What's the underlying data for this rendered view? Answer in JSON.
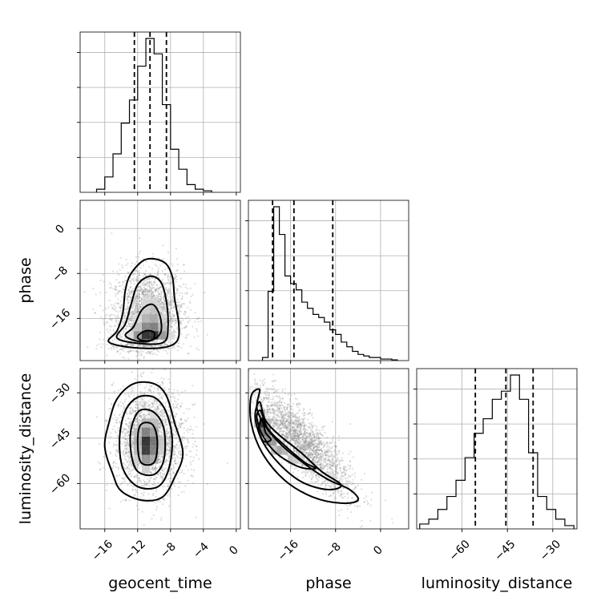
{
  "chart_data": {
    "type": "corner",
    "parameters": [
      "geocent_time",
      "phase",
      "luminosity_distance"
    ],
    "axis_labels": {
      "geocent_time": "geocent_time",
      "phase": "phase",
      "luminosity_distance": "luminosity_distance"
    },
    "ranges": {
      "geocent_time": [
        -19,
        0.5
      ],
      "phase": [
        -23.5,
        5
      ],
      "luminosity_distance": [
        -75,
        -22
      ]
    },
    "ticks": {
      "geocent_time": [
        -16,
        -12,
        -8,
        -4,
        0
      ],
      "phase": [
        -16,
        -8,
        0
      ],
      "luminosity_distance": [
        -60,
        -45,
        -30
      ]
    },
    "tick_labels": {
      "geocent_time": [
        "−16",
        "−12",
        "−8",
        "−4",
        "0"
      ],
      "phase": [
        "−16",
        "−8",
        "0"
      ],
      "luminosity_distance": [
        "−60",
        "−45",
        "−30"
      ]
    },
    "quantiles": {
      "geocent_time": [
        -12.4,
        -10.5,
        -8.5
      ],
      "phase": [
        -19.2,
        -15.4,
        -8.5
      ],
      "luminosity_distance": [
        -55.6,
        -45.5,
        -36.5
      ]
    },
    "histograms": {
      "geocent_time": {
        "edges": [
          -17,
          -16,
          -15,
          -14,
          -13,
          -12,
          -11,
          -10,
          -9,
          -8,
          -7,
          -6,
          -5,
          -4,
          -3
        ],
        "counts": [
          0.02,
          0.1,
          0.25,
          0.45,
          0.6,
          0.82,
          1.0,
          0.9,
          0.57,
          0.28,
          0.15,
          0.05,
          0.02,
          0.01
        ]
      },
      "phase": {
        "edges": [
          -21,
          -20,
          -19,
          -18,
          -17,
          -16,
          -15,
          -14,
          -13,
          -12,
          -11,
          -10,
          -9,
          -8,
          -7,
          -6,
          -5,
          -4,
          -3,
          -2,
          -1,
          0,
          1,
          2,
          3
        ],
        "counts": [
          0.02,
          0.45,
          1.0,
          0.82,
          0.55,
          0.5,
          0.46,
          0.38,
          0.34,
          0.3,
          0.28,
          0.25,
          0.2,
          0.17,
          0.12,
          0.09,
          0.06,
          0.04,
          0.03,
          0.02,
          0.02,
          0.01,
          0.01,
          0.005
        ]
      },
      "luminosity_distance": {
        "edges": [
          -74,
          -71,
          -68,
          -65,
          -62,
          -59,
          -56,
          -53,
          -50,
          -47,
          -44,
          -41,
          -38,
          -35,
          -32,
          -29,
          -26,
          -23
        ],
        "counts": [
          0.03,
          0.06,
          0.12,
          0.2,
          0.3,
          0.44,
          0.59,
          0.68,
          0.8,
          0.85,
          0.95,
          0.8,
          0.47,
          0.2,
          0.12,
          0.06,
          0.02
        ]
      }
    },
    "joint": [
      {
        "x": "geocent_time",
        "y": "phase",
        "mean": [
          -10.8,
          -15.4
        ],
        "sd": [
          2.2,
          4.2
        ],
        "rho": 0.05,
        "skew_y": true,
        "contours": [
          [
            [
              -15.5,
              -20.2
            ],
            [
              -14.5,
              -18.2
            ],
            [
              -13.8,
              -15.0
            ],
            [
              -13.5,
              -11.0
            ],
            [
              -12.8,
              -8.0
            ],
            [
              -11.0,
              -5.5
            ],
            [
              -8.8,
              -6.0
            ],
            [
              -7.8,
              -8.5
            ],
            [
              -7.5,
              -12.5
            ],
            [
              -7.0,
              -17.0
            ],
            [
              -7.2,
              -20.0
            ],
            [
              -9.0,
              -21.2
            ],
            [
              -12.5,
              -21.2
            ]
          ],
          [
            [
              -14.5,
              -19.5
            ],
            [
              -13.5,
              -17.0
            ],
            [
              -12.8,
              -13.5
            ],
            [
              -12.0,
              -10.0
            ],
            [
              -10.5,
              -8.5
            ],
            [
              -9.2,
              -9.5
            ],
            [
              -8.5,
              -13.0
            ],
            [
              -8.3,
              -17.5
            ],
            [
              -8.8,
              -20.2
            ],
            [
              -11.5,
              -20.5
            ]
          ],
          [
            [
              -13.5,
              -19.0
            ],
            [
              -12.5,
              -17.5
            ],
            [
              -11.5,
              -14.5
            ],
            [
              -10.2,
              -13.5
            ],
            [
              -9.3,
              -15.5
            ],
            [
              -9.2,
              -18.5
            ],
            [
              -10.5,
              -20.0
            ],
            [
              -12.2,
              -20.0
            ]
          ],
          [
            [
              -12.0,
              -19.2
            ],
            [
              -11.0,
              -18.2
            ],
            [
              -10.0,
              -18.5
            ],
            [
              -10.2,
              -19.8
            ],
            [
              -11.5,
              -19.9
            ]
          ]
        ],
        "density": [
          {
            "x": -11.0,
            "y": -19.0,
            "w": 0.9
          },
          {
            "x": -10.0,
            "y": -19.0,
            "w": 0.9
          },
          {
            "x": -11.0,
            "y": -17.5,
            "w": 0.5
          },
          {
            "x": -10.0,
            "y": -17.5,
            "w": 0.55
          },
          {
            "x": -12.0,
            "y": -19.0,
            "w": 0.45
          },
          {
            "x": -9.0,
            "y": -19.0,
            "w": 0.45
          },
          {
            "x": -11.0,
            "y": -16.0,
            "w": 0.3
          },
          {
            "x": -10.0,
            "y": -16.0,
            "w": 0.35
          },
          {
            "x": -10.0,
            "y": -14.5,
            "w": 0.25
          },
          {
            "x": -11.0,
            "y": -14.5,
            "w": 0.2
          },
          {
            "x": -12.0,
            "y": -17.5,
            "w": 0.25
          },
          {
            "x": -9.0,
            "y": -17.5,
            "w": 0.28
          },
          {
            "x": -10.0,
            "y": -13.0,
            "w": 0.18
          },
          {
            "x": -11.0,
            "y": -13.0,
            "w": 0.15
          },
          {
            "x": -9.0,
            "y": -16.0,
            "w": 0.18
          },
          {
            "x": -12.0,
            "y": -16.0,
            "w": 0.15
          },
          {
            "x": -13.0,
            "y": -19.0,
            "w": 0.15
          },
          {
            "x": -8.0,
            "y": -19.0,
            "w": 0.15
          }
        ]
      },
      {
        "x": "geocent_time",
        "y": "luminosity_distance",
        "mean": [
          -10.5,
          -45.5
        ],
        "sd": [
          2.2,
          8.5
        ],
        "rho": 0.0,
        "skew_y": false,
        "contours": [
          [
            [
              -12.5,
              -27.0
            ],
            [
              -14.5,
              -32.0
            ],
            [
              -15.5,
              -40.0
            ],
            [
              -16.0,
              -48.0
            ],
            [
              -15.0,
              -57.0
            ],
            [
              -14.0,
              -62.5
            ],
            [
              -11.5,
              -65.5
            ],
            [
              -9.0,
              -64.5
            ],
            [
              -7.5,
              -58.0
            ],
            [
              -6.5,
              -50.0
            ],
            [
              -7.5,
              -40.0
            ],
            [
              -8.5,
              -31.0
            ],
            [
              -10.0,
              -27.0
            ]
          ],
          [
            [
              -12.0,
              -31.5
            ],
            [
              -13.5,
              -36.0
            ],
            [
              -14.2,
              -45.0
            ],
            [
              -13.8,
              -55.0
            ],
            [
              -12.0,
              -61.0
            ],
            [
              -9.5,
              -61.0
            ],
            [
              -8.2,
              -55.0
            ],
            [
              -7.8,
              -45.0
            ],
            [
              -8.6,
              -36.0
            ],
            [
              -10.0,
              -31.5
            ]
          ],
          [
            [
              -11.8,
              -36.0
            ],
            [
              -12.8,
              -42.0
            ],
            [
              -12.8,
              -50.0
            ],
            [
              -12.0,
              -56.0
            ],
            [
              -10.0,
              -57.0
            ],
            [
              -8.8,
              -52.0
            ],
            [
              -8.8,
              -42.0
            ],
            [
              -10.0,
              -36.5
            ]
          ],
          [
            [
              -11.6,
              -40.5
            ],
            [
              -12.0,
              -46.0
            ],
            [
              -11.6,
              -53.0
            ],
            [
              -10.0,
              -53.0
            ],
            [
              -9.6,
              -46.0
            ],
            [
              -10.2,
              -40.5
            ]
          ]
        ],
        "density": [
          {
            "x": -11.0,
            "y": -46.0,
            "w": 0.9
          },
          {
            "x": -11.0,
            "y": -49.0,
            "w": 0.85
          },
          {
            "x": -10.0,
            "y": -46.0,
            "w": 0.6
          },
          {
            "x": -11.0,
            "y": -43.0,
            "w": 0.55
          },
          {
            "x": -10.0,
            "y": -49.0,
            "w": 0.55
          },
          {
            "x": -11.0,
            "y": -52.0,
            "w": 0.45
          },
          {
            "x": -12.0,
            "y": -46.0,
            "w": 0.35
          },
          {
            "x": -10.0,
            "y": -43.0,
            "w": 0.4
          },
          {
            "x": -10.0,
            "y": -52.0,
            "w": 0.35
          },
          {
            "x": -12.0,
            "y": -49.0,
            "w": 0.3
          },
          {
            "x": -11.0,
            "y": -40.0,
            "w": 0.3
          },
          {
            "x": -10.0,
            "y": -40.0,
            "w": 0.28
          },
          {
            "x": -12.0,
            "y": -43.0,
            "w": 0.28
          },
          {
            "x": -9.0,
            "y": -46.0,
            "w": 0.25
          },
          {
            "x": -9.0,
            "y": -49.0,
            "w": 0.22
          },
          {
            "x": -11.0,
            "y": -55.0,
            "w": 0.2
          },
          {
            "x": -12.0,
            "y": -52.0,
            "w": 0.2
          },
          {
            "x": -10.0,
            "y": -37.0,
            "w": 0.15
          }
        ]
      },
      {
        "x": "phase",
        "y": "luminosity_distance",
        "mean": [
          -14.0,
          -46.0
        ],
        "sd": [
          4.5,
          9.0
        ],
        "rho": -0.85,
        "skew_y": false,
        "contours": [
          [
            [
              -21.5,
              -29.0
            ],
            [
              -22.0,
              -35.0
            ],
            [
              -20.5,
              -41.0
            ],
            [
              -17.5,
              -47.5
            ],
            [
              -13.5,
              -53.5
            ],
            [
              -9.5,
              -58.5
            ],
            [
              -5.5,
              -62.0
            ],
            [
              -4.0,
              -65.5
            ],
            [
              -7.0,
              -66.5
            ],
            [
              -12.0,
              -64.5
            ],
            [
              -17.0,
              -59.0
            ],
            [
              -21.0,
              -50.0
            ],
            [
              -23.0,
              -40.0
            ],
            [
              -23.0,
              -31.0
            ]
          ],
          [
            [
              -21.5,
              -33.0
            ],
            [
              -20.5,
              -39.0
            ],
            [
              -18.0,
              -44.0
            ],
            [
              -14.0,
              -50.0
            ],
            [
              -10.5,
              -56.0
            ],
            [
              -7.0,
              -60.5
            ],
            [
              -9.5,
              -62.0
            ],
            [
              -14.0,
              -59.5
            ],
            [
              -18.0,
              -53.5
            ],
            [
              -21.0,
              -46.0
            ],
            [
              -22.3,
              -38.0
            ]
          ],
          [
            [
              -21.3,
              -36.0
            ],
            [
              -20.0,
              -42.0
            ],
            [
              -17.0,
              -47.5
            ],
            [
              -13.5,
              -53.0
            ],
            [
              -11.5,
              -55.0
            ],
            [
              -14.5,
              -54.5
            ],
            [
              -18.5,
              -50.0
            ],
            [
              -21.0,
              -44.0
            ],
            [
              -22.0,
              -38.0
            ]
          ],
          [
            [
              -21.0,
              -38.5
            ],
            [
              -20.5,
              -43.0
            ],
            [
              -19.5,
              -45.5
            ],
            [
              -20.8,
              -46.0
            ],
            [
              -21.7,
              -42.0
            ]
          ]
        ],
        "density": [
          {
            "x": -21.0,
            "y": -40.0,
            "w": 0.95
          },
          {
            "x": -21.0,
            "y": -43.0,
            "w": 0.6
          },
          {
            "x": -20.0,
            "y": -43.0,
            "w": 0.55
          },
          {
            "x": -20.0,
            "y": -46.0,
            "w": 0.5
          },
          {
            "x": -21.0,
            "y": -37.0,
            "w": 0.35
          },
          {
            "x": -19.0,
            "y": -46.0,
            "w": 0.45
          },
          {
            "x": -18.0,
            "y": -49.0,
            "w": 0.38
          },
          {
            "x": -17.0,
            "y": -49.0,
            "w": 0.32
          },
          {
            "x": -16.0,
            "y": -52.0,
            "w": 0.25
          },
          {
            "x": -15.0,
            "y": -52.0,
            "w": 0.22
          },
          {
            "x": -19.0,
            "y": -49.0,
            "w": 0.28
          },
          {
            "x": -22.0,
            "y": -40.0,
            "w": 0.3
          },
          {
            "x": -20.0,
            "y": -40.0,
            "w": 0.3
          },
          {
            "x": -12.0,
            "y": -55.0,
            "w": 0.16
          },
          {
            "x": -9.0,
            "y": -58.0,
            "w": 0.12
          },
          {
            "x": -14.0,
            "y": -52.0,
            "w": 0.18
          }
        ]
      }
    ],
    "grid": true
  }
}
